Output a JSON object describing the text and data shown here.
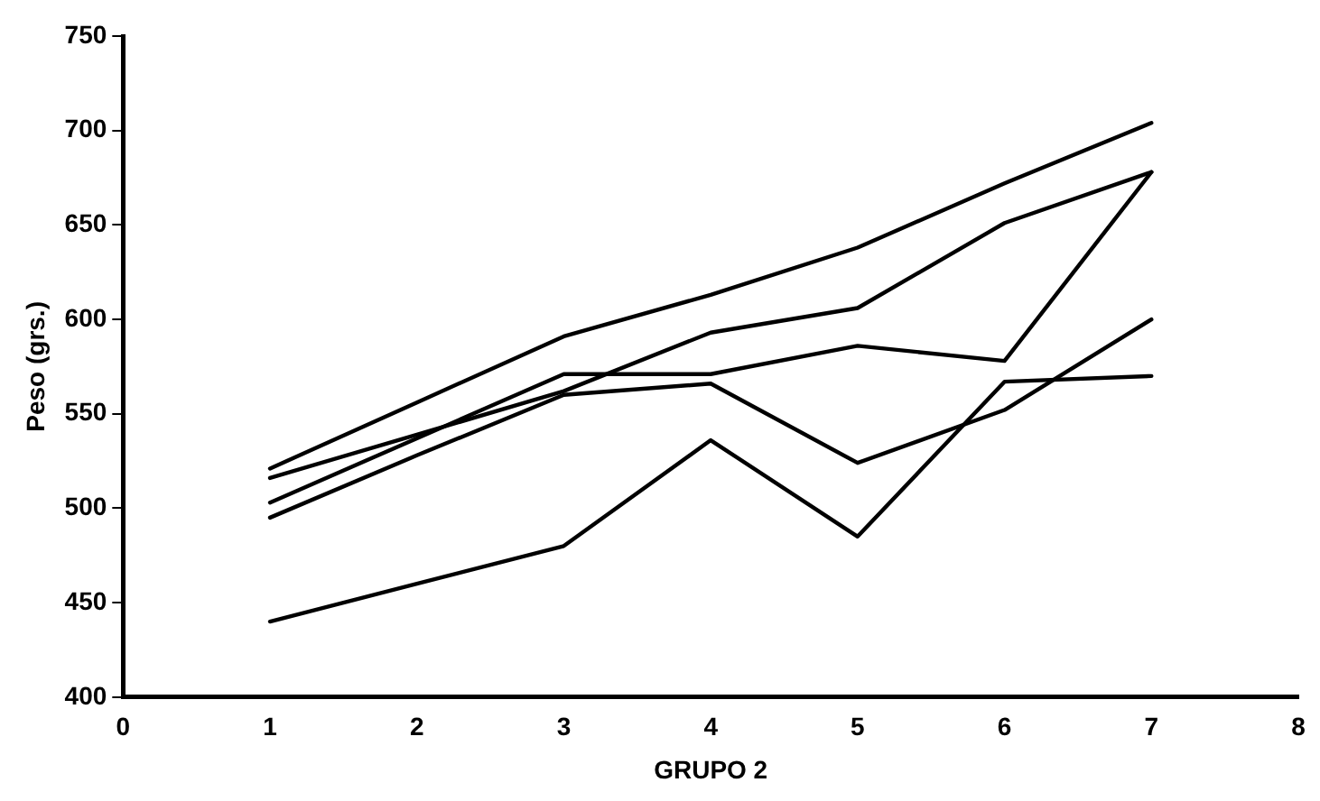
{
  "chart_data": {
    "type": "line",
    "xlabel": "GRUPO 2",
    "ylabel": "Peso (grs.)",
    "x": [
      1,
      2,
      3,
      4,
      5,
      6,
      7
    ],
    "series": [
      {
        "color": "#000000",
        "values": [
          521,
          556,
          591,
          613,
          638,
          672,
          704
        ]
      },
      {
        "color": "#000000",
        "values": [
          516,
          539,
          562,
          593,
          606,
          651,
          678
        ]
      },
      {
        "color": "#000000",
        "values": [
          503,
          537,
          571,
          571,
          586,
          578,
          678
        ]
      },
      {
        "color": "#000000",
        "values": [
          495,
          528,
          560,
          566,
          524,
          552,
          600
        ]
      },
      {
        "color": "#000000",
        "values": [
          440,
          460,
          480,
          536,
          485,
          567,
          570
        ]
      }
    ],
    "xlim": [
      0,
      8
    ],
    "xticks": [
      0,
      1,
      2,
      3,
      4,
      5,
      6,
      7,
      8
    ],
    "ylim": [
      400,
      750
    ],
    "yticks": [
      400,
      450,
      500,
      550,
      600,
      650,
      700,
      750
    ],
    "grid": false,
    "legend": false,
    "marker": "none",
    "line_style": "solid"
  }
}
